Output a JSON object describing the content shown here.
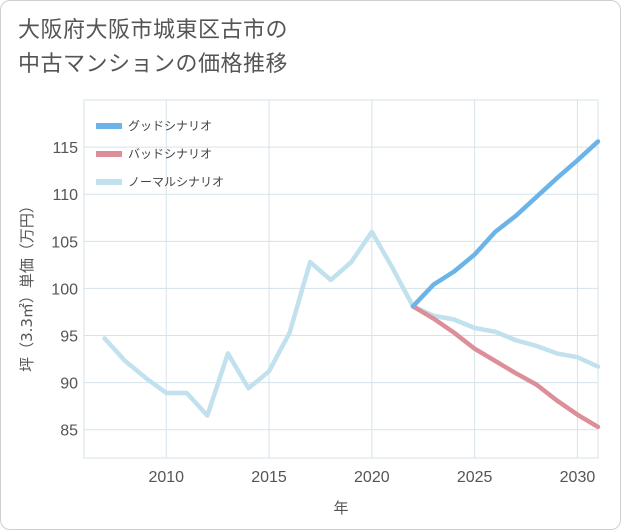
{
  "title_line1": "大阪府大阪市城東区古市の",
  "title_line2": "中古マンションの価格推移",
  "chart_data": {
    "type": "line",
    "xlabel": "年",
    "ylabel": "坪（3.3㎡）単価（万円）",
    "xlim": [
      2006,
      2031
    ],
    "ylim": [
      82,
      120
    ],
    "xticks": [
      2010,
      2015,
      2020,
      2025,
      2030
    ],
    "yticks": [
      85,
      90,
      95,
      100,
      105,
      110,
      115
    ],
    "grid": true,
    "legend_position": "top-left",
    "series": [
      {
        "name": "グッドシナリオ",
        "color": "#6cb4e8",
        "x": [
          2022,
          2023,
          2024,
          2025,
          2026,
          2027,
          2028,
          2029,
          2030,
          2031
        ],
        "values": [
          98.1,
          100.4,
          101.8,
          103.6,
          106.0,
          107.7,
          109.7,
          111.7,
          113.6,
          115.6
        ]
      },
      {
        "name": "バッドシナリオ",
        "color": "#dc8f98",
        "x": [
          2022,
          2023,
          2024,
          2025,
          2026,
          2027,
          2028,
          2029,
          2030,
          2031
        ],
        "values": [
          98.1,
          96.8,
          95.3,
          93.6,
          92.3,
          91.0,
          89.8,
          88.1,
          86.6,
          85.3
        ]
      },
      {
        "name": "ノーマルシナリオ",
        "color": "#c1e1ee",
        "x": [
          2007,
          2008,
          2009,
          2010,
          2011,
          2012,
          2013,
          2014,
          2015,
          2016,
          2017,
          2018,
          2019,
          2020,
          2021,
          2022,
          2023,
          2024,
          2025,
          2026,
          2027,
          2028,
          2029,
          2030,
          2031
        ],
        "values": [
          94.7,
          92.3,
          90.5,
          88.9,
          88.9,
          86.5,
          93.1,
          89.4,
          91.2,
          95.3,
          102.8,
          100.9,
          102.8,
          106.0,
          102.2,
          98.1,
          97.1,
          96.7,
          95.8,
          95.4,
          94.5,
          93.9,
          93.1,
          92.7,
          91.7
        ]
      }
    ]
  }
}
